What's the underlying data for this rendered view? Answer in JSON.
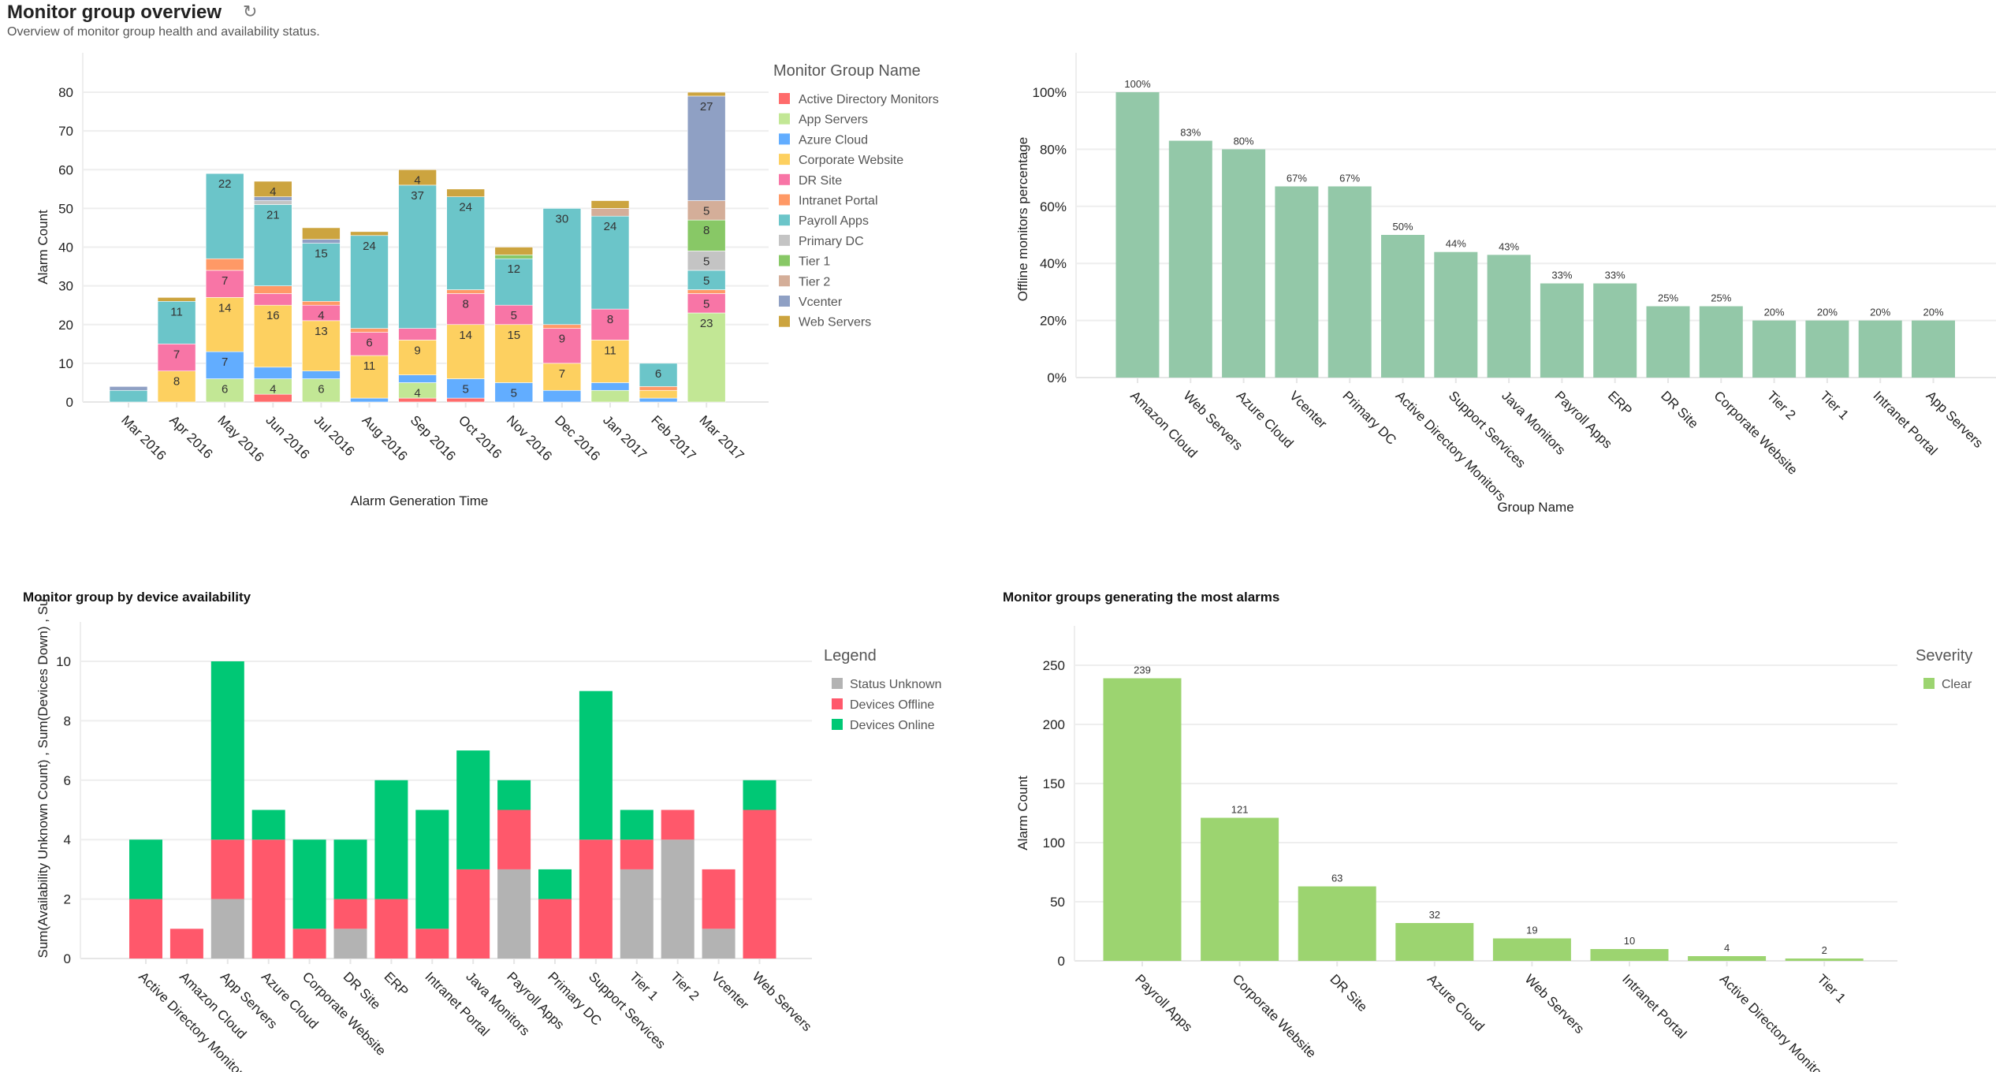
{
  "header": {
    "title": "Monitor group overview",
    "subtitle": "Overview of monitor group health and availability status.",
    "refresh_icon": "refresh-icon"
  },
  "chart_data": [
    {
      "type": "bar",
      "stacked": true,
      "title": "",
      "xlabel": "Alarm Generation Time",
      "ylabel": "Alarm Count",
      "ylim": [
        0,
        80
      ],
      "yticks": [
        0,
        10,
        20,
        30,
        40,
        50,
        60,
        70,
        80
      ],
      "grid": true,
      "legend_title": "Monitor Group Name",
      "legend_position": "right",
      "categories": [
        "Mar 2016",
        "Apr 2016",
        "May 2016",
        "Jun 2016",
        "Jul 2016",
        "Aug 2016",
        "Sep 2016",
        "Oct 2016",
        "Nov 2016",
        "Dec 2016",
        "Jan 2017",
        "Feb 2017",
        "Mar 2017"
      ],
      "series": [
        {
          "name": "Active Directory Monitors",
          "color": "#ff6b6b",
          "values": [
            0,
            0,
            0,
            2,
            0,
            0,
            1,
            1,
            0,
            0,
            0,
            0,
            0
          ]
        },
        {
          "name": "App Servers",
          "color": "#c2e795",
          "values": [
            0,
            0,
            6,
            4,
            6,
            0,
            4,
            0,
            0,
            0,
            3,
            0,
            23
          ]
        },
        {
          "name": "Azure Cloud",
          "color": "#62adff",
          "values": [
            0,
            0,
            7,
            3,
            2,
            1,
            2,
            5,
            5,
            3,
            2,
            1,
            0
          ]
        },
        {
          "name": "Corporate Website",
          "color": "#fdd060",
          "values": [
            0,
            8,
            14,
            16,
            13,
            11,
            9,
            14,
            15,
            7,
            11,
            2,
            0
          ]
        },
        {
          "name": "DR Site",
          "color": "#f875a6",
          "values": [
            0,
            7,
            7,
            3,
            4,
            6,
            3,
            8,
            5,
            9,
            8,
            0,
            5
          ]
        },
        {
          "name": "Intranet Portal",
          "color": "#ff9966",
          "values": [
            0,
            0,
            3,
            2,
            1,
            1,
            0,
            1,
            0,
            1,
            0,
            1,
            1
          ]
        },
        {
          "name": "Payroll Apps",
          "color": "#6bc5c9",
          "values": [
            3,
            11,
            22,
            21,
            15,
            24,
            37,
            24,
            12,
            30,
            24,
            6,
            5
          ]
        },
        {
          "name": "Primary DC",
          "color": "#c4c4c4",
          "values": [
            0,
            0,
            0,
            1,
            0,
            0,
            0,
            0,
            0,
            0,
            0,
            0,
            5
          ]
        },
        {
          "name": "Tier 1",
          "color": "#88c866",
          "values": [
            0,
            0,
            0,
            0,
            0,
            0,
            0,
            0,
            1,
            0,
            0,
            0,
            8
          ]
        },
        {
          "name": "Tier 2",
          "color": "#d4ae99",
          "values": [
            0,
            0,
            0,
            0,
            0,
            0,
            0,
            0,
            0,
            0,
            2,
            0,
            5
          ]
        },
        {
          "name": "Vcenter",
          "color": "#8fa0c4",
          "values": [
            1,
            0,
            0,
            1,
            1,
            0,
            0,
            0,
            0,
            0,
            0,
            0,
            27
          ]
        },
        {
          "name": "Web Servers",
          "color": "#cca43f",
          "values": [
            0,
            1,
            0,
            4,
            3,
            1,
            4,
            2,
            2,
            0,
            2,
            0,
            1
          ]
        }
      ]
    },
    {
      "type": "bar",
      "title": "",
      "xlabel": "Group Name",
      "ylabel": "Offline monitors percentage",
      "ylim": [
        0,
        100
      ],
      "yticks": [
        "0%",
        "20%",
        "40%",
        "60%",
        "80%",
        "100%"
      ],
      "grid": true,
      "color": "#93c8a8",
      "categories": [
        "Amazon Cloud",
        "Web Servers",
        "Azure Cloud",
        "Vcenter",
        "Primary DC",
        "Active Directory Monitors",
        "Support Services",
        "Java Monitors",
        "Payroll Apps",
        "ERP",
        "DR Site",
        "Corporate Website",
        "Tier 2",
        "Tier 1",
        "Intranet Portal",
        "App Servers"
      ],
      "values": [
        100,
        83,
        80,
        67,
        67,
        50,
        44,
        43,
        33,
        33,
        25,
        25,
        20,
        20,
        20,
        20
      ],
      "data_labels": [
        "100%",
        "83%",
        "80%",
        "67%",
        "67%",
        "50%",
        "44%",
        "43%",
        "33%",
        "33%",
        "25%",
        "25%",
        "20%",
        "20%",
        "20%",
        "20%"
      ]
    },
    {
      "type": "bar",
      "stacked": true,
      "title": "Monitor group by device availability",
      "xlabel": "",
      "ylabel": "Sum(Availability Unknown Count) , Sum(Devices Down) , Su",
      "ylim": [
        0,
        10
      ],
      "yticks": [
        0,
        2,
        4,
        6,
        8,
        10
      ],
      "grid": true,
      "legend_title": "Legend",
      "legend_position": "right",
      "categories": [
        "Active Directory Monitors",
        "Amazon Cloud",
        "App Servers",
        "Azure Cloud",
        "Corporate Website",
        "DR Site",
        "ERP",
        "Intranet Portal",
        "Java Monitors",
        "Payroll Apps",
        "Primary DC",
        "Support Services",
        "Tier 1",
        "Tier 2",
        "Vcenter",
        "Web Servers"
      ],
      "series": [
        {
          "name": "Status Unknown",
          "color": "#b3b3b3",
          "values": [
            0,
            0,
            2,
            0,
            0,
            1,
            0,
            0,
            0,
            3,
            0,
            0,
            3,
            4,
            1,
            0
          ]
        },
        {
          "name": "Devices Offline",
          "color": "#ff586b",
          "values": [
            2,
            1,
            2,
            4,
            1,
            1,
            2,
            1,
            3,
            2,
            2,
            4,
            1,
            1,
            2,
            5
          ]
        },
        {
          "name": "Devices Online",
          "color": "#00c875",
          "values": [
            2,
            0,
            6,
            1,
            3,
            2,
            4,
            4,
            4,
            1,
            1,
            5,
            1,
            0,
            0,
            1
          ]
        }
      ]
    },
    {
      "type": "bar",
      "title": "Monitor groups generating the most alarms",
      "xlabel": "",
      "ylabel": "Alarm Count",
      "ylim": [
        0,
        250
      ],
      "yticks": [
        0,
        50,
        100,
        150,
        200,
        250
      ],
      "grid": true,
      "legend_title": "Severity",
      "legend_position": "right",
      "series_name": "Clear",
      "color": "#9cd470",
      "categories": [
        "Payroll Apps",
        "Corporate Website",
        "DR Site",
        "Azure Cloud",
        "Web Servers",
        "Intranet Portal",
        "Active Directory Monitors",
        "Tier 1"
      ],
      "values": [
        239,
        121,
        63,
        32,
        19,
        10,
        4,
        2
      ]
    }
  ]
}
